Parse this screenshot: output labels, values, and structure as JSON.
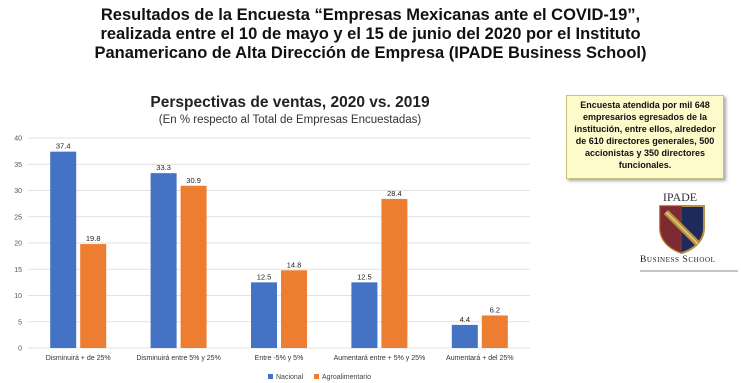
{
  "headline": {
    "line1": "Resultados de la Encuesta “Empresas Mexicanas ante el COVID-19”,",
    "line2": "realizada entre el 10 de mayo y el 15 de junio del 2020 por el Instituto",
    "line3": "Panamericano de Alta Dirección de Empresa (IPADE Business School)"
  },
  "note": "Encuesta atendida por mil 648 empresarios egresados de la institución, entre ellos, alrededor de 610 directores generales, 500 accionistas y 350 directores funcionales.",
  "logo": {
    "name": "IPADE",
    "school": "Business School",
    "colors": {
      "navy": "#1f2a5c",
      "gold": "#b8923f",
      "red": "#8e2a2a"
    }
  },
  "chart_data": {
    "type": "bar",
    "title": "Perspectivas de ventas, 2020 vs. 2019",
    "subtitle": "(En % respecto al Total de Empresas Encuestadas)",
    "categories": [
      "Disminuirá + de 25%",
      "Disminuirá entre 5% y 25%",
      "Entre -5% y 5%",
      "Aumentará entre + 5% y 25%",
      "Aumentará + del 25%"
    ],
    "series": [
      {
        "name": "Nacional",
        "color": "#4472c4",
        "values": [
          37.4,
          33.3,
          12.5,
          12.5,
          4.4
        ]
      },
      {
        "name": "Agroalimentario",
        "color": "#ed7d31",
        "values": [
          19.8,
          30.9,
          14.8,
          28.4,
          6.2
        ]
      }
    ],
    "value_labels": [
      [
        "37.4",
        "33.3",
        "12.5",
        "12.5",
        "4.4"
      ],
      [
        "19.8",
        "30.9",
        "14.8",
        "28.4",
        "6.2"
      ]
    ],
    "y_ticks": [
      "0",
      "5",
      "10",
      "15",
      "20",
      "25",
      "30",
      "35",
      "40"
    ],
    "ylim": [
      0,
      40
    ],
    "grid": true,
    "legend_position": "bottom-center"
  }
}
